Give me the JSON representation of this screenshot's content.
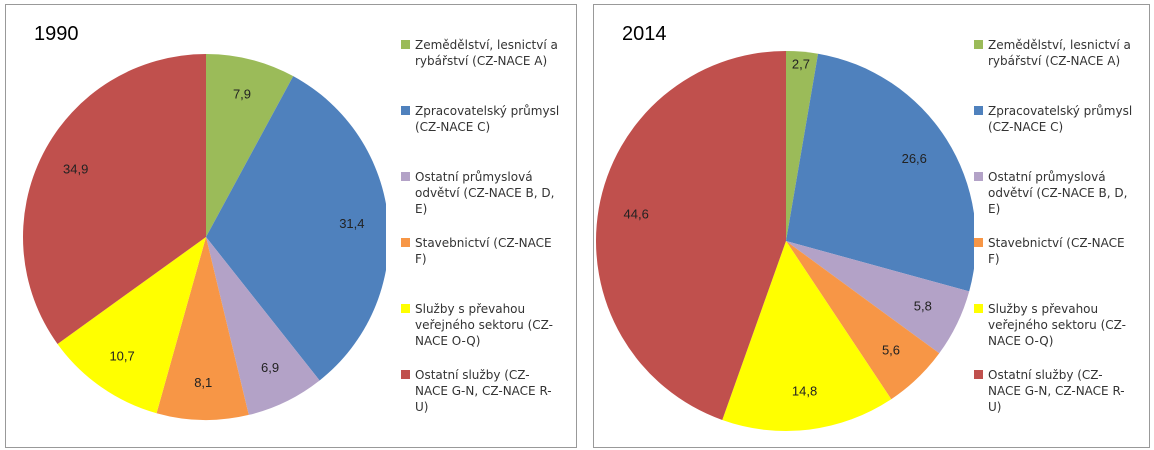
{
  "chart_data": [
    {
      "type": "pie",
      "title": "1990",
      "categories": [
        "Zemědělství, lesnictví a rybářství (CZ-NACE A)",
        "Zpracovatelský průmysl (CZ-NACE C)",
        "Ostatní průmyslová odvětví (CZ-NACE B, D, E)",
        "Stavebnictví (CZ-NACE F)",
        "Služby s převahou veřejného sektoru (CZ-NACE O-Q)",
        "Ostatní služby (CZ-NACE G-N, CZ-NACE R-U)"
      ],
      "values": [
        7.9,
        31.4,
        6.9,
        8.1,
        10.7,
        34.9
      ],
      "value_labels": [
        "7,9",
        "31,4",
        "6,9",
        "8,1",
        "10,7",
        "34,9"
      ],
      "colors": [
        "#9bbb59",
        "#4f81bd",
        "#b3a2c7",
        "#f79646",
        "#ffff00",
        "#c0504d"
      ]
    },
    {
      "type": "pie",
      "title": "2014",
      "categories": [
        "Zemědělství, lesnictví a rybářství (CZ-NACE A)",
        "Zpracovatelský průmysl (CZ-NACE C)",
        "Ostatní průmyslová odvětví (CZ-NACE B, D, E)",
        "Stavebnictví (CZ-NACE F)",
        "Služby s převahou veřejného sektoru (CZ-NACE O-Q)",
        "Ostatní služby (CZ-NACE G-N, CZ-NACE R-U)"
      ],
      "values": [
        2.7,
        26.6,
        5.8,
        5.6,
        14.8,
        44.6
      ],
      "value_labels": [
        "2,7",
        "26,6",
        "5,8",
        "5,6",
        "14,8",
        "44,6"
      ],
      "colors": [
        "#9bbb59",
        "#4f81bd",
        "#b3a2c7",
        "#f79646",
        "#ffff00",
        "#c0504d"
      ]
    }
  ]
}
